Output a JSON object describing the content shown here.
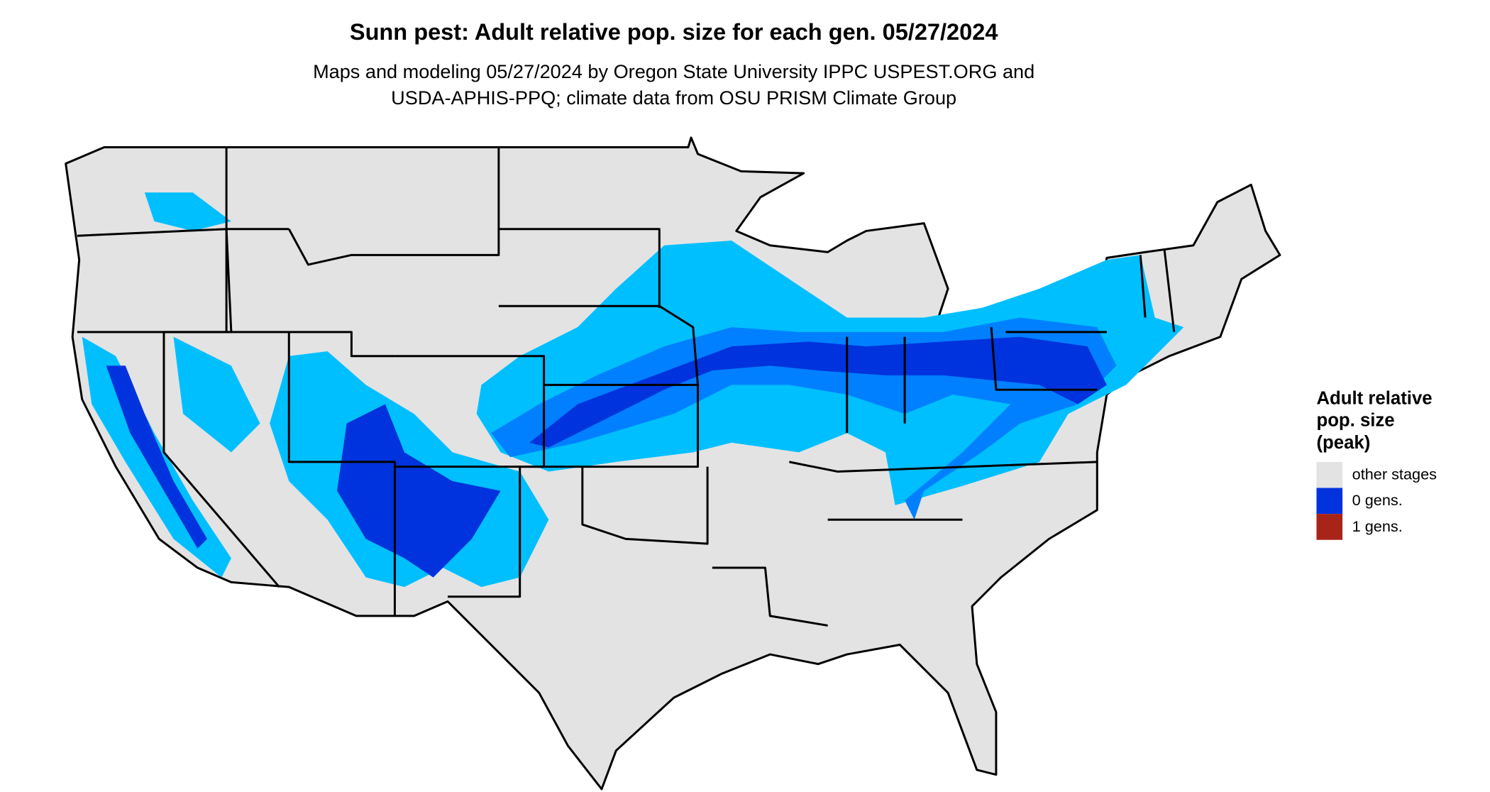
{
  "header": {
    "title": "Sunn pest: Adult relative pop. size for each gen. 05/27/2024",
    "subtitle": [
      "Maps and modeling 05/27/2024 by Oregon State University IPPC USPEST.ORG and",
      "USDA-APHIS-PPQ; climate data from OSU PRISM Climate Group"
    ]
  },
  "legend": {
    "title": [
      "Adult relative",
      "pop. size",
      "(peak)"
    ],
    "items": [
      {
        "label": "other stages",
        "color": "#e3e3e3"
      },
      {
        "label": "0 gens.",
        "color": "#0033dd"
      },
      {
        "label": "1 gens.",
        "color": "#a82418"
      }
    ]
  }
}
